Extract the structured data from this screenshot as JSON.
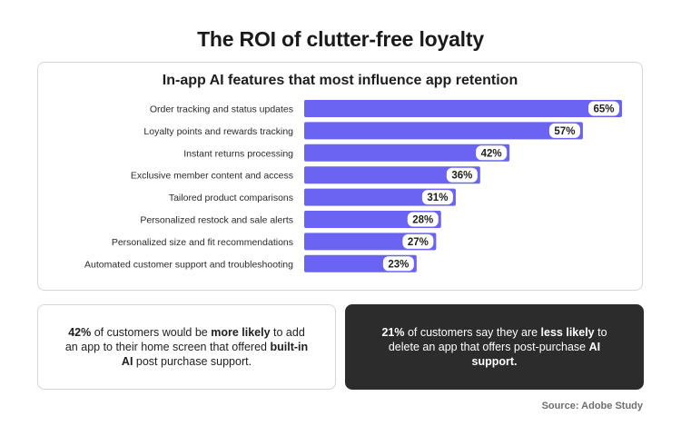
{
  "title": "The ROI of clutter-free loyalty",
  "chart_data": {
    "type": "bar",
    "orientation": "horizontal",
    "title": "In-app AI features that most influence app retention",
    "categories": [
      "Order tracking and status updates",
      "Loyalty points and rewards tracking",
      "Instant returns processing",
      "Exclusive member content and access",
      "Tailored product comparisons",
      "Personalized restock and sale alerts",
      "Personalized size and fit recommendations",
      "Automated customer support and troubleshooting"
    ],
    "values": [
      65,
      57,
      42,
      36,
      31,
      28,
      27,
      23
    ],
    "value_labels": [
      "65%",
      "57%",
      "42%",
      "36%",
      "31%",
      "28%",
      "27%",
      "23%"
    ],
    "value_unit": "%",
    "xlim": [
      0,
      65
    ],
    "grid": false,
    "bar_color": "#6b63f2"
  },
  "stats": {
    "left": {
      "parts": [
        {
          "text": "42%",
          "bold": true
        },
        {
          "text": " of customers would be ",
          "bold": false
        },
        {
          "text": "more likely",
          "bold": true
        },
        {
          "text": " to add an app to their home screen that offered ",
          "bold": false
        },
        {
          "text": "built-in AI",
          "bold": true
        },
        {
          "text": " post purchase support.",
          "bold": false
        }
      ]
    },
    "right": {
      "parts": [
        {
          "text": "21%",
          "bold": true
        },
        {
          "text": " of customers say they are ",
          "bold": false
        },
        {
          "text": "less likely",
          "bold": true
        },
        {
          "text": " to delete an app that offers post-purchase ",
          "bold": false
        },
        {
          "text": "AI support.",
          "bold": true
        }
      ]
    }
  },
  "source": "Source: Adobe Study",
  "colors": {
    "accent": "#6b63f2",
    "dark_card": "#2c2c2c",
    "border": "#d6d6d6"
  }
}
